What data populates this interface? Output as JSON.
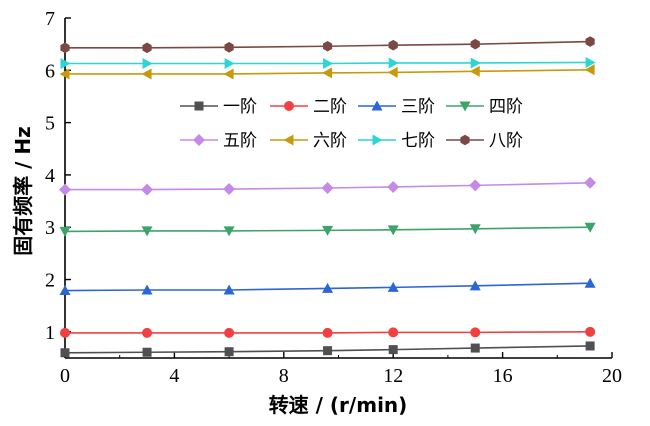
{
  "chart_data": {
    "type": "line",
    "xlabel": "转速 / (r/min)",
    "ylabel": "固有频率 / Hz",
    "xlim": [
      0,
      20
    ],
    "ylim": [
      0.5,
      7
    ],
    "xticks": [
      0,
      4,
      8,
      12,
      16,
      20
    ],
    "yticks": [
      1,
      2,
      3,
      4,
      5,
      6,
      7
    ],
    "grid": false,
    "legend_position": "center-top",
    "x": [
      0,
      3,
      6,
      9.6,
      12,
      15,
      19.2
    ],
    "series": [
      {
        "name": "一阶",
        "color": "#505050",
        "marker": "square",
        "values": [
          0.6,
          0.61,
          0.62,
          0.64,
          0.66,
          0.69,
          0.73
        ]
      },
      {
        "name": "二阶",
        "color": "#f24040",
        "marker": "circle",
        "values": [
          0.98,
          0.98,
          0.98,
          0.98,
          0.99,
          0.99,
          1.0
        ]
      },
      {
        "name": "三阶",
        "color": "#2c66d6",
        "marker": "triangle-up",
        "values": [
          1.79,
          1.8,
          1.8,
          1.83,
          1.85,
          1.88,
          1.93
        ]
      },
      {
        "name": "四阶",
        "color": "#3da36b",
        "marker": "triangle-down",
        "values": [
          2.92,
          2.93,
          2.93,
          2.94,
          2.95,
          2.97,
          3.0
        ]
      },
      {
        "name": "五阶",
        "color": "#c58ae8",
        "marker": "diamond",
        "values": [
          3.72,
          3.72,
          3.73,
          3.75,
          3.77,
          3.8,
          3.85
        ]
      },
      {
        "name": "六阶",
        "color": "#c79a0e",
        "marker": "triangle-left",
        "values": [
          5.93,
          5.93,
          5.93,
          5.95,
          5.96,
          5.98,
          6.01
        ]
      },
      {
        "name": "七阶",
        "color": "#2ed4d6",
        "marker": "triangle-right",
        "values": [
          6.13,
          6.13,
          6.13,
          6.13,
          6.14,
          6.14,
          6.15
        ]
      },
      {
        "name": "八阶",
        "color": "#7a4a42",
        "marker": "hexagon",
        "values": [
          6.43,
          6.43,
          6.44,
          6.46,
          6.48,
          6.5,
          6.55
        ]
      }
    ]
  }
}
